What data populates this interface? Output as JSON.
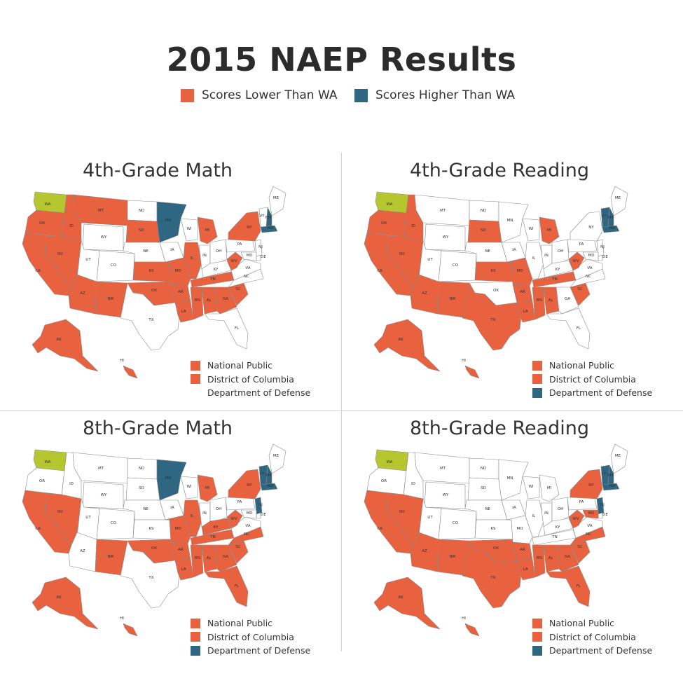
{
  "title": "2015 NAEP Results",
  "legend": {
    "lower": {
      "label": "Scores Lower Than WA",
      "color": "#e8623f"
    },
    "higher": {
      "label": "Scores Higher Than WA",
      "color": "#2f6681"
    }
  },
  "colors": {
    "lower": "#e8623f",
    "higher": "#2f6681",
    "wa": "#b6c62f",
    "same": "#ffffff",
    "border": "#8a8a8a"
  },
  "panels": [
    {
      "title": "4th-Grade Math",
      "states": {
        "WA": "wa",
        "OR": "lower",
        "CA": "lower",
        "ID": "lower",
        "NV": "lower",
        "MT": "lower",
        "WY": "same",
        "UT": "same",
        "AZ": "lower",
        "CO": "same",
        "NM": "lower",
        "ND": "same",
        "SD": "lower",
        "NE": "same",
        "KS": "lower",
        "OK": "lower",
        "TX": "same",
        "MN": "higher",
        "IA": "same",
        "MO": "lower",
        "AR": "lower",
        "LA": "lower",
        "WI": "same",
        "IL": "lower",
        "MI": "lower",
        "IN": "same",
        "OH": "same",
        "KY": "same",
        "TN": "lower",
        "MS": "lower",
        "AL": "lower",
        "GA": "lower",
        "FL": "same",
        "SC": "lower",
        "NC": "same",
        "VA": "same",
        "WV": "lower",
        "PA": "same",
        "NY": "lower",
        "ME": "same",
        "NH": "higher",
        "VT": "same",
        "MA": "higher",
        "NJ": "same",
        "DE": "same",
        "MD": "same",
        "AK": "lower",
        "HI": "lower"
      },
      "legend": [
        {
          "label": "National Public",
          "status": "lower"
        },
        {
          "label": "District of Columbia",
          "status": "lower"
        },
        {
          "label": "Department of Defense",
          "status": "same"
        }
      ]
    },
    {
      "title": "4th-Grade Reading",
      "states": {
        "WA": "wa",
        "OR": "lower",
        "CA": "lower",
        "ID": "lower",
        "NV": "lower",
        "MT": "same",
        "WY": "same",
        "UT": "same",
        "AZ": "lower",
        "CO": "same",
        "NM": "lower",
        "ND": "same",
        "SD": "lower",
        "NE": "same",
        "KS": "lower",
        "OK": "same",
        "TX": "lower",
        "MN": "same",
        "IA": "same",
        "MO": "lower",
        "AR": "lower",
        "LA": "lower",
        "WI": "same",
        "IL": "same",
        "MI": "lower",
        "IN": "same",
        "OH": "same",
        "KY": "same",
        "TN": "lower",
        "MS": "lower",
        "AL": "lower",
        "GA": "same",
        "FL": "same",
        "SC": "lower",
        "NC": "same",
        "VA": "same",
        "WV": "lower",
        "PA": "same",
        "NY": "same",
        "ME": "same",
        "NH": "higher",
        "VT": "higher",
        "MA": "higher",
        "NJ": "same",
        "DE": "same",
        "MD": "same",
        "AK": "lower",
        "HI": "lower"
      },
      "legend": [
        {
          "label": "National Public",
          "status": "lower"
        },
        {
          "label": "District of Columbia",
          "status": "lower"
        },
        {
          "label": "Department of Defense",
          "status": "higher"
        }
      ]
    },
    {
      "title": "8th-Grade Math",
      "states": {
        "WA": "wa",
        "OR": "same",
        "CA": "lower",
        "ID": "same",
        "NV": "lower",
        "MT": "same",
        "WY": "same",
        "UT": "same",
        "AZ": "same",
        "CO": "same",
        "NM": "lower",
        "ND": "same",
        "SD": "same",
        "NE": "same",
        "KS": "same",
        "OK": "lower",
        "TX": "same",
        "MN": "higher",
        "IA": "same",
        "MO": "lower",
        "AR": "lower",
        "LA": "lower",
        "WI": "same",
        "IL": "lower",
        "MI": "lower",
        "IN": "same",
        "OH": "same",
        "KY": "lower",
        "TN": "lower",
        "MS": "lower",
        "AL": "lower",
        "GA": "lower",
        "FL": "lower",
        "SC": "lower",
        "NC": "lower",
        "VA": "same",
        "WV": "lower",
        "PA": "same",
        "NY": "lower",
        "ME": "same",
        "NH": "higher",
        "VT": "higher",
        "MA": "higher",
        "NJ": "higher",
        "DE": "same",
        "MD": "same",
        "AK": "lower",
        "HI": "lower"
      },
      "legend": [
        {
          "label": "National Public",
          "status": "lower"
        },
        {
          "label": "District of Columbia",
          "status": "lower"
        },
        {
          "label": "Department of Defense",
          "status": "higher"
        }
      ]
    },
    {
      "title": "8th-Grade Reading",
      "states": {
        "WA": "wa",
        "OR": "same",
        "CA": "lower",
        "ID": "same",
        "NV": "lower",
        "MT": "same",
        "WY": "same",
        "UT": "same",
        "AZ": "lower",
        "CO": "same",
        "NM": "lower",
        "ND": "same",
        "SD": "same",
        "NE": "same",
        "KS": "same",
        "OK": "lower",
        "TX": "lower",
        "MN": "same",
        "IA": "same",
        "MO": "same",
        "AR": "lower",
        "LA": "lower",
        "WI": "same",
        "IL": "same",
        "MI": "same",
        "IN": "same",
        "OH": "same",
        "KY": "same",
        "TN": "same",
        "MS": "lower",
        "AL": "lower",
        "GA": "lower",
        "FL": "lower",
        "SC": "lower",
        "NC": "lower",
        "VA": "same",
        "WV": "lower",
        "PA": "same",
        "NY": "lower",
        "ME": "same",
        "NH": "higher",
        "VT": "higher",
        "MA": "higher",
        "NJ": "higher",
        "DE": "same",
        "MD": "lower",
        "AK": "lower",
        "HI": "lower"
      },
      "legend": [
        {
          "label": "National Public",
          "status": "lower"
        },
        {
          "label": "District of Columbia",
          "status": "lower"
        },
        {
          "label": "Department of Defense",
          "status": "higher"
        }
      ]
    }
  ]
}
